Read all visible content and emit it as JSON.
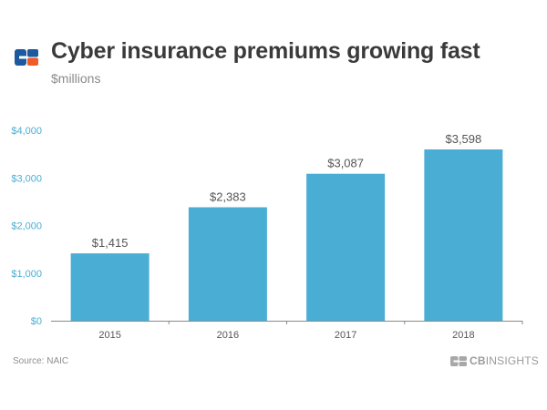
{
  "header": {
    "title": "Cyber insurance premiums growing fast",
    "subtitle": "$millions"
  },
  "footer": {
    "source": "Source: NAIC",
    "brand_bold": "CB",
    "brand_light": "INSIGHTS"
  },
  "colors": {
    "bar": "#4aaed4",
    "axis_labels": "#4aaed4",
    "logo_blue": "#1b5a9e",
    "logo_orange": "#f05a28"
  },
  "chart_data": {
    "type": "bar",
    "title": "Cyber insurance premiums growing fast",
    "subtitle": "$millions",
    "categories": [
      "2015",
      "2016",
      "2017",
      "2018"
    ],
    "values": [
      1415,
      2383,
      3087,
      3598
    ],
    "value_labels": [
      "$1,415",
      "$2,383",
      "$3,087",
      "$3,598"
    ],
    "ylim": [
      0,
      4000
    ],
    "yticks": [
      0,
      1000,
      2000,
      3000,
      4000
    ],
    "ytick_labels": [
      "$0",
      "$1,000",
      "$2,000",
      "$3,000",
      "$4,000"
    ],
    "xlabel": "",
    "ylabel": "",
    "grid": false,
    "legend": "none"
  }
}
